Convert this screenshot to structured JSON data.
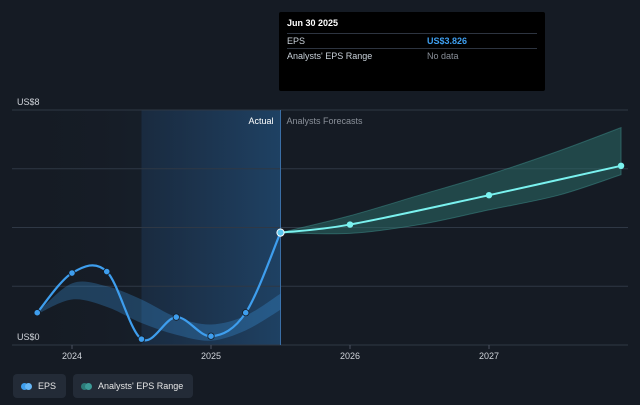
{
  "tooltip": {
    "date": "Jun 30 2025",
    "rows": [
      {
        "label": "EPS",
        "value": "US$3.826"
      },
      {
        "label": "Analysts' EPS Range",
        "value": "No data"
      }
    ]
  },
  "legend": [
    {
      "label": "EPS",
      "colors": [
        "#3e9eee",
        "#67b7f7"
      ]
    },
    {
      "label": "Analysts' EPS Range",
      "colors": [
        "#2c7a78",
        "#3c9a96"
      ]
    }
  ],
  "colors": {
    "background": "#151b24",
    "actual_region": "#1b2838",
    "eps_line": "#3e9eee",
    "forecast_line": "#7af2ef",
    "range_band": "#2b6b67"
  },
  "chart_data": {
    "type": "line",
    "y_axis": {
      "min": 0,
      "max": 8,
      "tick_labels": [
        "US$8",
        "US$0"
      ]
    },
    "x_axis": {
      "tick_labels": [
        "2024",
        "2025",
        "2026",
        "2027"
      ],
      "range": [
        2023.5,
        2027.95
      ]
    },
    "region_labels": {
      "actual": "Actual",
      "forecast": "Analysts Forecasts"
    },
    "series": [
      {
        "name": "EPS",
        "points": [
          {
            "x": 2023.75,
            "y": 1.1
          },
          {
            "x": 2024.0,
            "y": 2.45
          },
          {
            "x": 2024.25,
            "y": 2.5
          },
          {
            "x": 2024.5,
            "y": 0.2
          },
          {
            "x": 2024.75,
            "y": 0.95
          },
          {
            "x": 2025.0,
            "y": 0.3
          },
          {
            "x": 2025.25,
            "y": 1.1
          },
          {
            "x": 2025.5,
            "y": 3.826
          }
        ]
      },
      {
        "name": "Analysts Forecasts",
        "points": [
          {
            "x": 2025.5,
            "y": 3.826
          },
          {
            "x": 2026.0,
            "y": 4.1
          },
          {
            "x": 2027.0,
            "y": 5.1
          },
          {
            "x": 2027.95,
            "y": 6.1
          }
        ]
      }
    ],
    "historical_range": {
      "x": [
        2023.75,
        2024.0,
        2024.25,
        2024.5,
        2024.75,
        2025.0,
        2025.25,
        2025.5
      ],
      "low": [
        1.05,
        1.55,
        1.3,
        0.75,
        0.35,
        0.15,
        0.5,
        1.2
      ],
      "high": [
        1.1,
        2.1,
        2.0,
        1.55,
        0.95,
        0.7,
        1.0,
        1.75
      ]
    },
    "forecast_range": {
      "x": [
        2025.5,
        2026.0,
        2026.5,
        2027.0,
        2027.5,
        2027.95
      ],
      "low": [
        3.826,
        3.8,
        4.1,
        4.6,
        5.1,
        5.8
      ],
      "high": [
        3.826,
        4.4,
        5.1,
        5.8,
        6.6,
        7.4
      ]
    }
  }
}
